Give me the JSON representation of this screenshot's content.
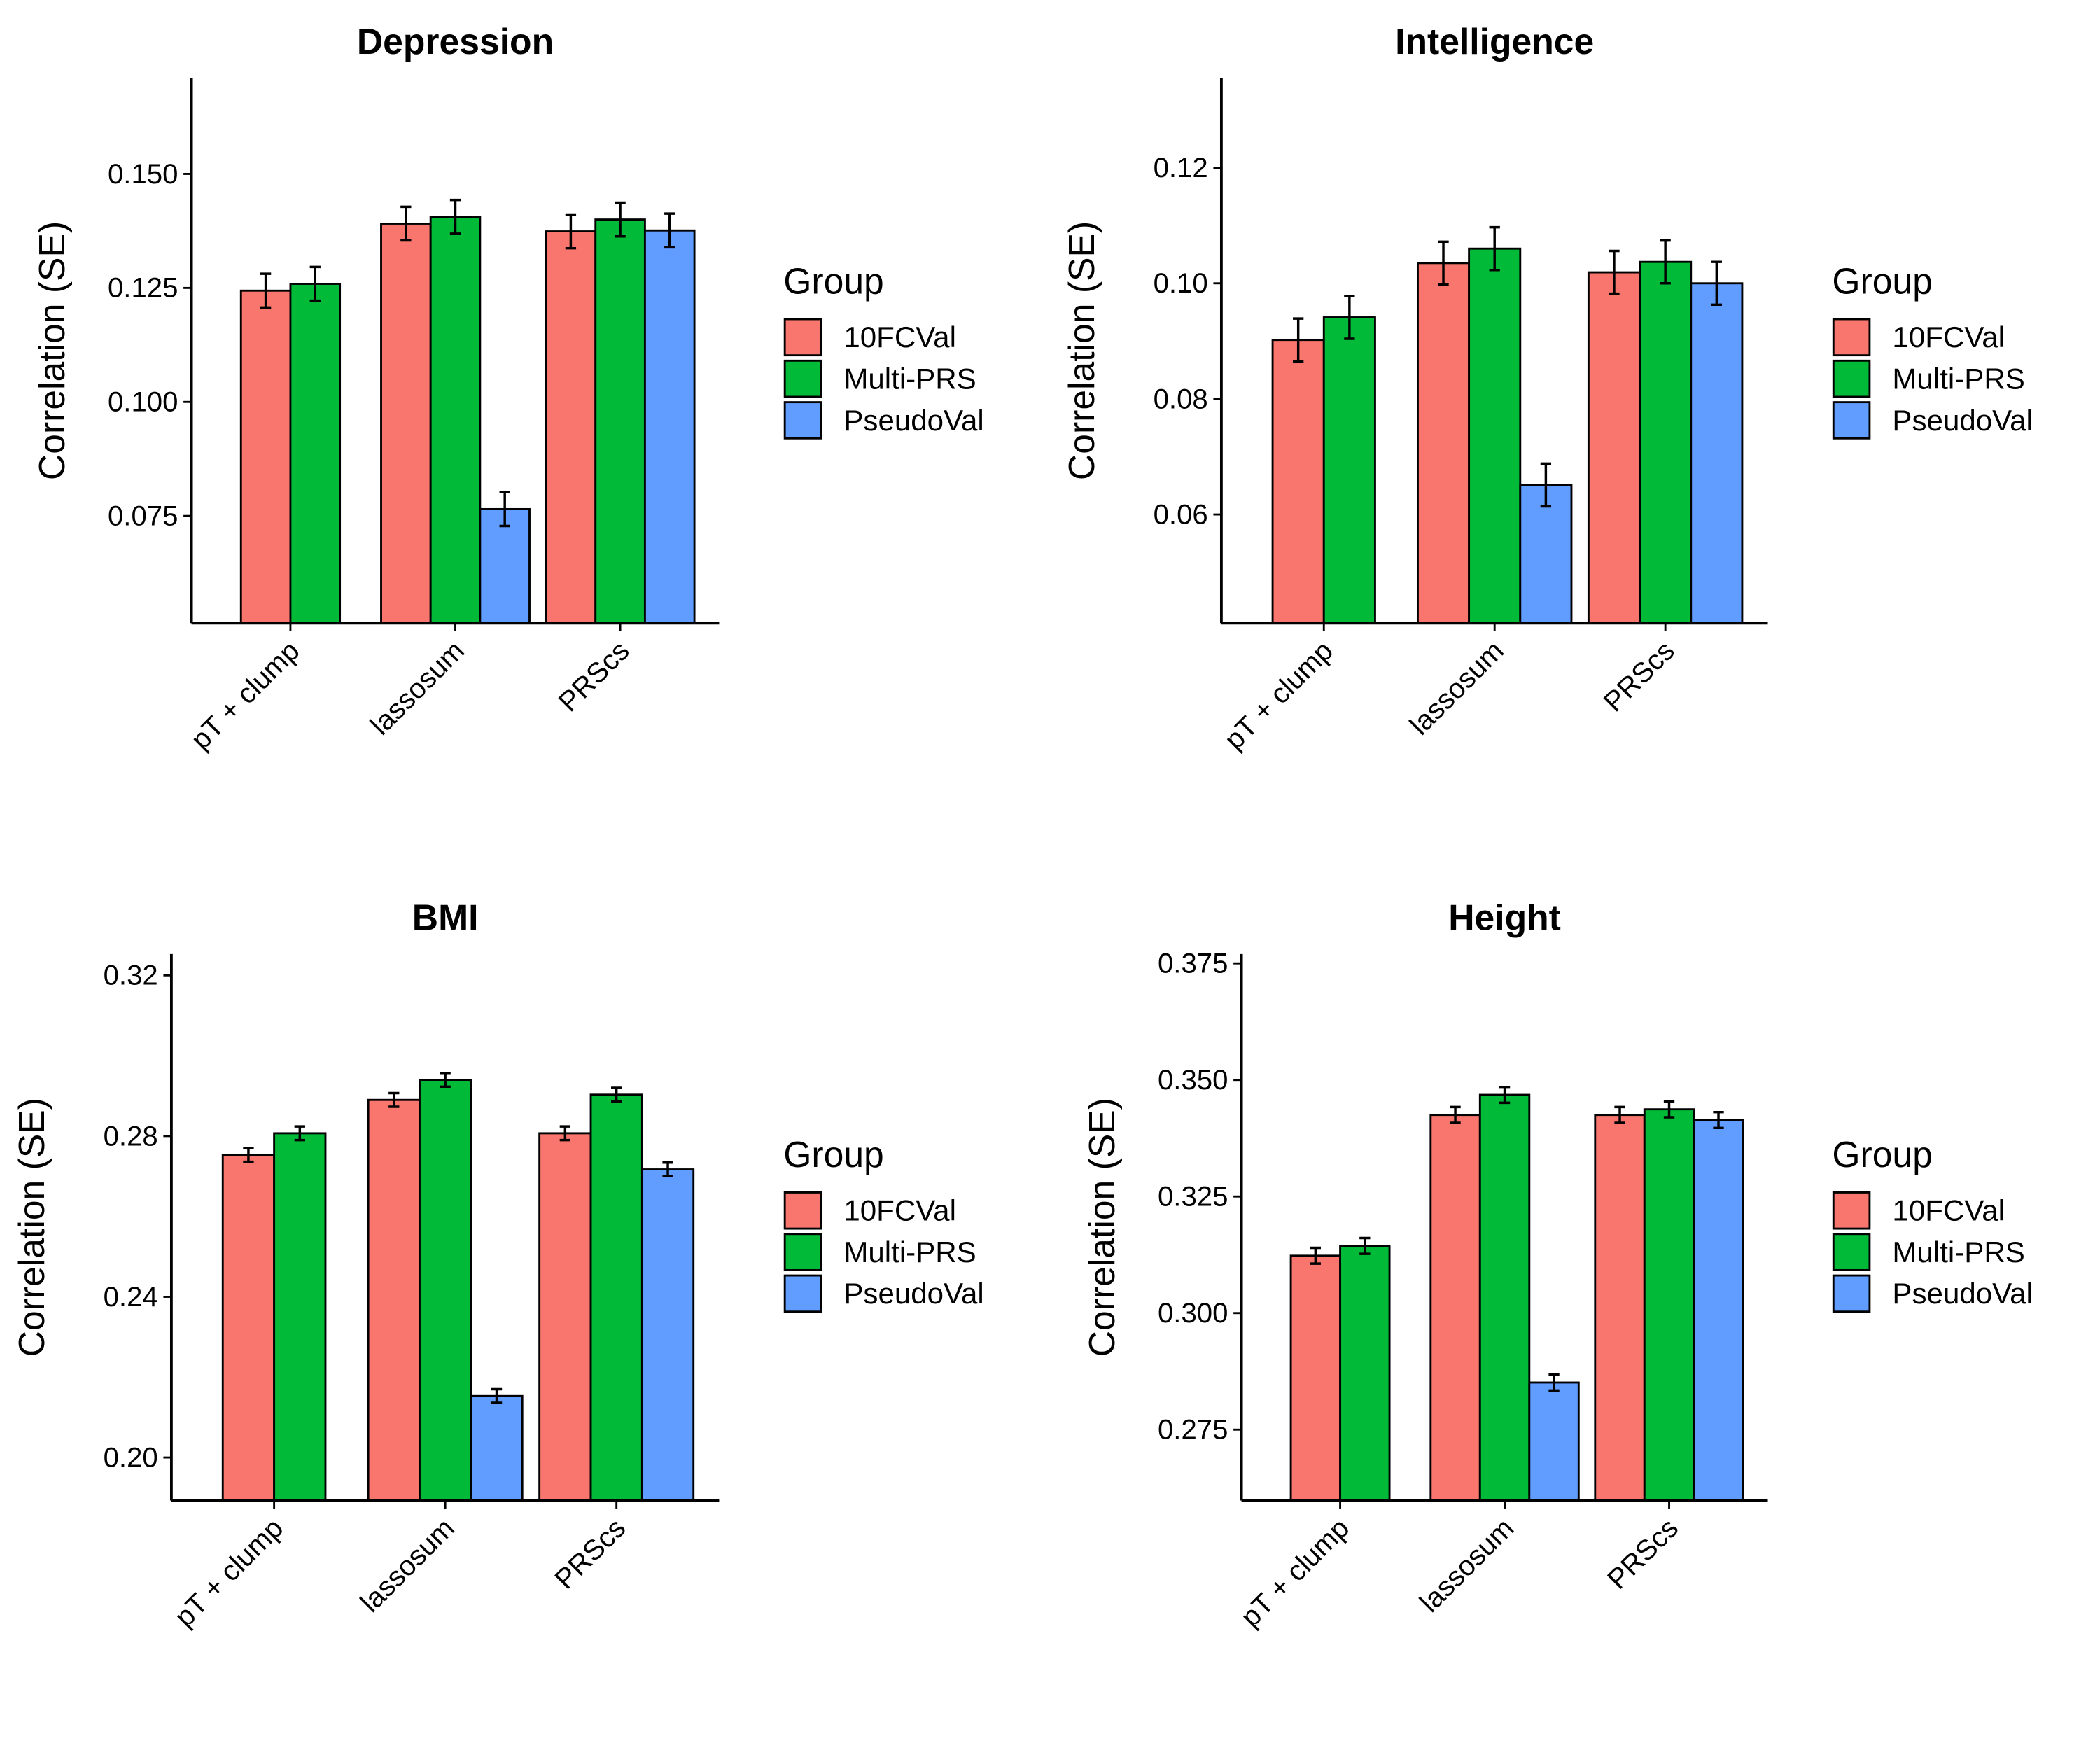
{
  "chart_data": [
    {
      "type": "bar",
      "title": "Depression",
      "y_label": "Correlation (SE)",
      "legend_title": "Group",
      "categories": [
        "pT + clump",
        "lassosum",
        "PRScs"
      ],
      "series": [
        {
          "name": "10FCVal",
          "color": "#F8766D",
          "values": [
            0.1244,
            0.1391,
            0.1374
          ],
          "errors": [
            0.0037,
            0.0037,
            0.0037
          ]
        },
        {
          "name": "Multi-PRS",
          "color": "#00BA38",
          "values": [
            0.1259,
            0.1406,
            0.14
          ],
          "errors": [
            0.0037,
            0.0037,
            0.0037
          ]
        },
        {
          "name": "PseudoVal",
          "color": "#619CFF",
          "values": [
            null,
            0.0765,
            0.1376
          ],
          "errors": [
            null,
            0.0037,
            0.0037
          ]
        }
      ],
      "ylim": [
        0.0515,
        0.171
      ],
      "yticks": [
        0.075,
        {
          "value": 0.1,
          "label": "0.100"
        },
        0.125,
        {
          "value": 0.15,
          "label": "0.150"
        }
      ]
    },
    {
      "type": "bar",
      "title": "Intelligence",
      "y_label": "Correlation (SE)",
      "legend_title": "Group",
      "categories": [
        "pT + clump",
        "lassosum",
        "PRScs"
      ],
      "series": [
        {
          "name": "10FCVal",
          "color": "#F8766D",
          "values": [
            0.0902,
            0.1035,
            0.1019
          ],
          "errors": [
            0.0037,
            0.0037,
            0.0037
          ]
        },
        {
          "name": "Multi-PRS",
          "color": "#00BA38",
          "values": [
            0.0941,
            0.106,
            0.1037
          ],
          "errors": [
            0.0037,
            0.0037,
            0.0037
          ]
        },
        {
          "name": "PseudoVal",
          "color": "#619CFF",
          "values": [
            null,
            0.0651,
            0.1
          ],
          "errors": [
            null,
            0.0037,
            0.0037
          ]
        }
      ],
      "ylim": [
        0.0412,
        0.1355
      ],
      "yticks": [
        0.06,
        0.08,
        {
          "value": 0.1,
          "label": "0.10"
        },
        0.12
      ]
    },
    {
      "type": "bar",
      "title": "BMI",
      "y_label": "Correlation (SE)",
      "legend_title": "Group",
      "categories": [
        "pT + clump",
        "lassosum",
        "PRScs"
      ],
      "series": [
        {
          "name": "10FCVal",
          "color": "#F8766D",
          "values": [
            0.2753,
            0.289,
            0.2807
          ],
          "errors": [
            0.0017,
            0.0017,
            0.0017
          ]
        },
        {
          "name": "Multi-PRS",
          "color": "#00BA38",
          "values": [
            0.2807,
            0.294,
            0.2903
          ],
          "errors": [
            0.0017,
            0.0017,
            0.0017
          ]
        },
        {
          "name": "PseudoVal",
          "color": "#619CFF",
          "values": [
            null,
            0.2153,
            0.2717
          ],
          "errors": [
            null,
            0.0017,
            0.0017
          ]
        }
      ],
      "ylim": [
        0.1893,
        0.3253
      ],
      "yticks": [
        {
          "value": 0.2,
          "label": "0.20"
        },
        0.24,
        0.28,
        0.32
      ]
    },
    {
      "type": "bar",
      "title": "Height",
      "y_label": "Correlation (SE)",
      "legend_title": "Group",
      "categories": [
        "pT + clump",
        "lassosum",
        "PRScs"
      ],
      "series": [
        {
          "name": "10FCVal",
          "color": "#F8766D",
          "values": [
            0.3123,
            0.3425,
            0.3425
          ],
          "errors": [
            0.0017,
            0.0017,
            0.0017
          ]
        },
        {
          "name": "Multi-PRS",
          "color": "#00BA38",
          "values": [
            0.3144,
            0.3468,
            0.3437
          ],
          "errors": [
            0.0017,
            0.0017,
            0.0017
          ]
        },
        {
          "name": "PseudoVal",
          "color": "#619CFF",
          "values": [
            null,
            0.2851,
            0.3414
          ],
          "errors": [
            null,
            0.0017,
            0.0017
          ]
        }
      ],
      "ylim": [
        0.2598,
        0.377
      ],
      "yticks": [
        0.275,
        {
          "value": 0.3,
          "label": "0.300"
        },
        0.325,
        {
          "value": 0.35,
          "label": "0.350"
        },
        0.375
      ]
    }
  ]
}
